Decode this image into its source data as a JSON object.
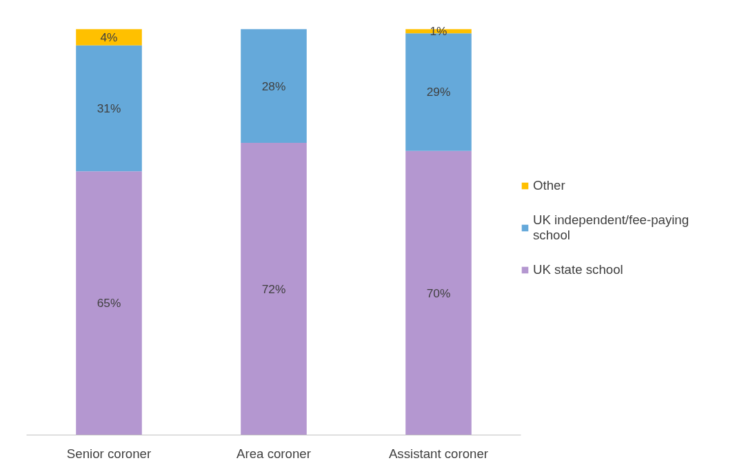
{
  "chart_data": {
    "type": "bar",
    "stacked": true,
    "categories": [
      "Senior coroner",
      "Area coroner",
      "Assistant coroner"
    ],
    "series": [
      {
        "name": "UK state school",
        "color": "#b497d0",
        "values": [
          65,
          72,
          70
        ],
        "value_labels": [
          "65%",
          "72%",
          "70%"
        ]
      },
      {
        "name": "UK independent/fee-paying school",
        "color": "#65a9da",
        "values": [
          31,
          28,
          29
        ],
        "value_labels": [
          "31%",
          "28%",
          "29%"
        ]
      },
      {
        "name": "Other",
        "color": "#ffc000",
        "values": [
          4,
          0,
          1
        ],
        "value_labels": [
          "4%",
          null,
          "1%"
        ]
      }
    ],
    "legend": "right",
    "grid": false
  }
}
